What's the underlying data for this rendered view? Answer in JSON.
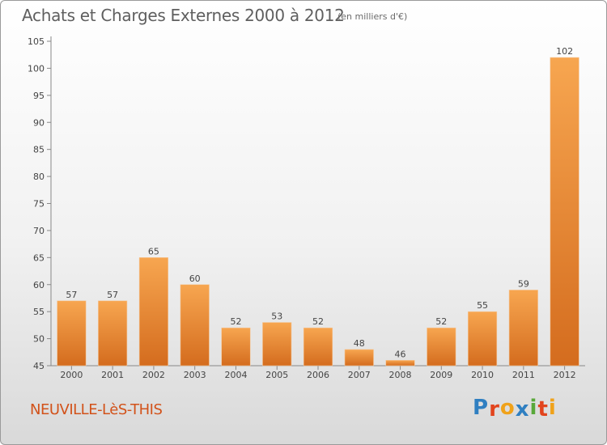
{
  "chart_data": {
    "type": "bar",
    "title": "Achats et Charges Externes 2000 à 2012",
    "subtitle": "(en milliers d'€)",
    "categories": [
      "2000",
      "2001",
      "2002",
      "2003",
      "2004",
      "2005",
      "2006",
      "2007",
      "2008",
      "2009",
      "2010",
      "2011",
      "2012"
    ],
    "values": [
      57,
      57,
      65,
      60,
      52,
      53,
      52,
      48,
      46,
      52,
      55,
      59,
      102
    ],
    "ylim": [
      45,
      105
    ],
    "yticks": [
      45,
      50,
      55,
      60,
      65,
      70,
      75,
      80,
      85,
      90,
      95,
      100,
      105
    ],
    "grid": false,
    "bar_color": "#e8822c",
    "bar_color_light": "#f7a650"
  },
  "footer": {
    "place": "NEUVILLE-LèS-THIS",
    "logo_letters": [
      {
        "ch": "P",
        "color": "#2f7fc1"
      },
      {
        "ch": "r",
        "color": "#e2441d"
      },
      {
        "ch": "o",
        "color": "#f0a21a"
      },
      {
        "ch": "x",
        "color": "#2f7fc1"
      },
      {
        "ch": "i",
        "color": "#59a83a"
      },
      {
        "ch": "t",
        "color": "#e2441d"
      },
      {
        "ch": "i",
        "color": "#f0a21a"
      }
    ]
  }
}
